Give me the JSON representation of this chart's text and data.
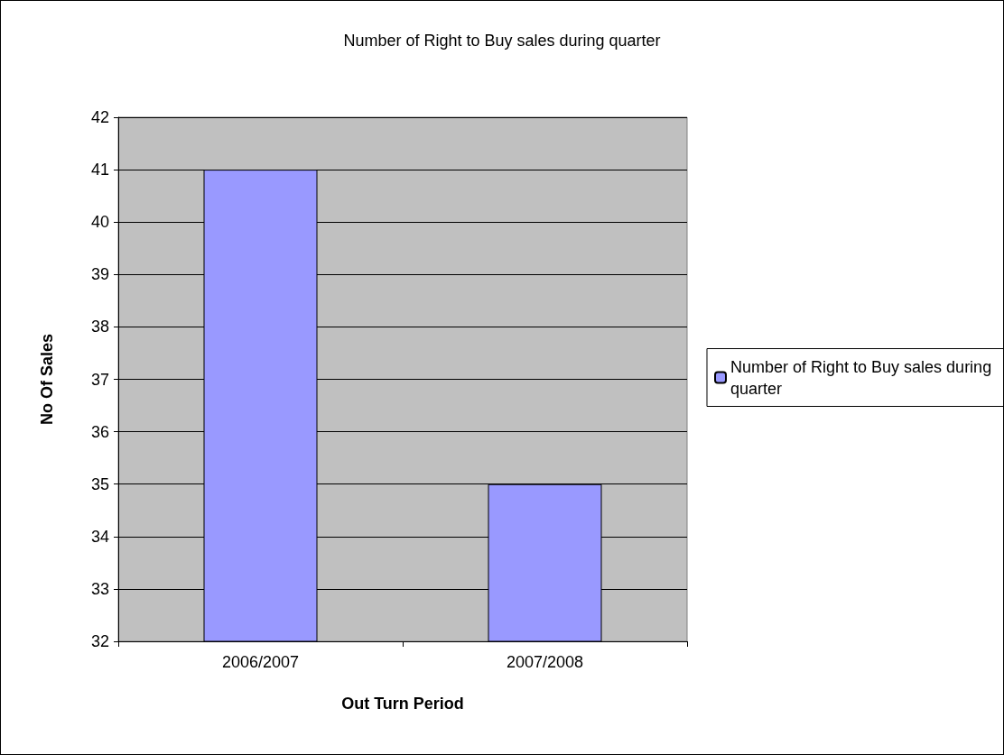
{
  "chart_data": {
    "type": "bar",
    "title": "Number of Right to Buy sales during quarter",
    "xlabel": "Out Turn Period",
    "ylabel": "No Of Sales",
    "categories": [
      "2006/2007",
      "2007/2008"
    ],
    "series": [
      {
        "name": "Number of Right to Buy sales during quarter",
        "color": "#9999ff",
        "values": [
          41,
          35
        ]
      }
    ],
    "ylim": [
      32,
      42
    ],
    "yticks": [
      32,
      33,
      34,
      35,
      36,
      37,
      38,
      39,
      40,
      41,
      42
    ],
    "grid": "y",
    "legend": "right"
  }
}
